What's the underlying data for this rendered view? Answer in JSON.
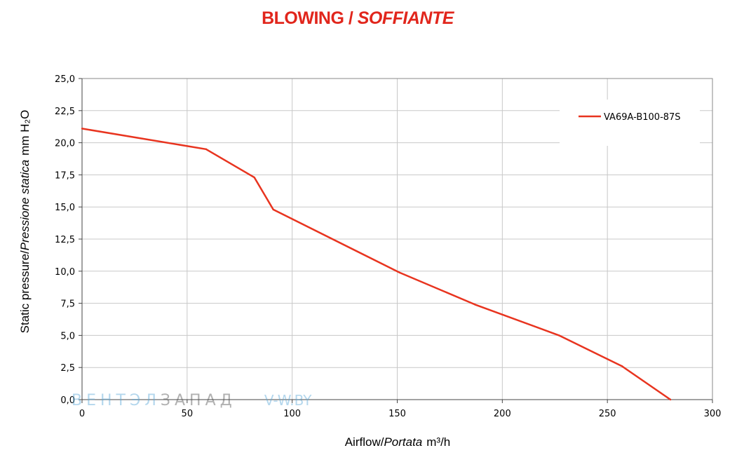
{
  "title": {
    "main": "BLOWING /",
    "italic": "SOFFIANTE"
  },
  "watermark": {
    "part1": "ВЕНТЭЛ",
    "part2": "ЗАПАД",
    "part3": "V-W.BY"
  },
  "chart_data": {
    "type": "line",
    "xlabel": {
      "main": "Airflow/",
      "italic": "Portata",
      "unit": "m³/h"
    },
    "ylabel": {
      "main": "Static pressure/",
      "italic": "Pressione statica",
      "unit": "mm H₂O"
    },
    "xlim": [
      0,
      300
    ],
    "ylim": [
      0,
      25
    ],
    "x_ticks": [
      "0",
      "50",
      "100",
      "150",
      "200",
      "250",
      "300"
    ],
    "y_ticks": [
      "0,0",
      "2,5",
      "5,0",
      "7,5",
      "10,0",
      "12,5",
      "15,0",
      "17,5",
      "20,0",
      "22,5",
      "25,0"
    ],
    "grid": true,
    "legend_position": "top-right",
    "series": [
      {
        "name": "VA69A-B100-87S",
        "color": "#e8341f",
        "x": [
          0,
          59,
          82,
          91,
          151,
          187,
          227,
          257,
          280
        ],
        "y": [
          21.1,
          19.5,
          17.3,
          14.8,
          9.9,
          7.4,
          5.0,
          2.6,
          0.0
        ]
      }
    ]
  }
}
